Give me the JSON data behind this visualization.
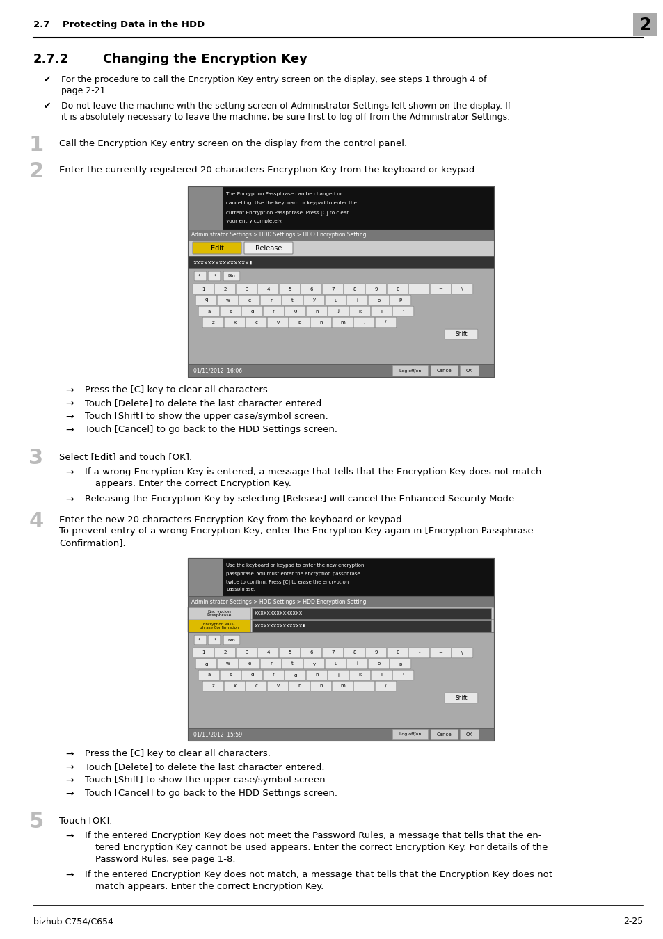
{
  "page_bg": "#ffffff",
  "header_text": "2.7    Protecting Data in the HDD",
  "header_num": "2",
  "section_title_num": "2.7.2",
  "section_title_text": "Changing the Encryption Key",
  "footer_left": "bizhub C754/C654",
  "footer_right": "2-25",
  "checkmark1_line1": "For the procedure to call the Encryption Key entry screen on the display, see steps 1 through 4 of",
  "checkmark1_line2": "page 2-21.",
  "checkmark2_line1": "Do not leave the machine with the setting screen of Administrator Settings left shown on the display. If",
  "checkmark2_line2": "it is absolutely necessary to leave the machine, be sure first to log off from the Administrator Settings.",
  "step1_text": "Call the Encryption Key entry screen on the display from the control panel.",
  "step2_text": "Enter the currently registered 20 characters Encryption Key from the keyboard or keypad.",
  "step3_text": "Select [Edit] and touch [OK].",
  "step4_line1": "Enter the new 20 characters Encryption Key from the keyboard or keypad.",
  "step4_line2": "To prevent entry of a wrong Encryption Key, enter the Encryption Key again in [Encryption Passphrase",
  "step4_line3": "Confirmation].",
  "step5_text": "Touch [OK].",
  "arr2": [
    "Press the [C] key to clear all characters.",
    "Touch [Delete] to delete the last character entered.",
    "Touch [Shift] to show the upper case/symbol screen.",
    "Touch [Cancel] to go back to the HDD Settings screen."
  ],
  "arr3": [
    "If a wrong Encryption Key is entered, a message that tells that the Encryption Key does not match",
    "    appears. Enter the correct Encryption Key.",
    "Releasing the Encryption Key by selecting [Release] will cancel the Enhanced Security Mode."
  ],
  "arr4": [
    "Press the [C] key to clear all characters.",
    "Touch [Delete] to delete the last character entered.",
    "Touch [Shift] to show the upper case/symbol screen.",
    "Touch [Cancel] to go back to the HDD Settings screen."
  ],
  "arr5_1_l1": "If the entered Encryption Key does not meet the Password Rules, a message that tells that the en-",
  "arr5_1_l2": "tered Encryption Key cannot be used appears. Enter the correct Encryption Key. For details of the",
  "arr5_1_l3": "Password Rules, see page 1-8.",
  "arr5_2_l1": "If the entered Encryption Key does not match, a message that tells that the Encryption Key does not",
  "arr5_2_l2": "match appears. Enter the correct Encryption Key.",
  "ui1_black_lines": [
    "The Encryption Passphrase can be changed or",
    "cancelling. Use the keyboard or keypad to enter the",
    "current Encryption Passphrase. Press [C] to clear",
    "your entry completely."
  ],
  "ui2_black_lines": [
    "Use the keyboard or keypad to enter the new encryption",
    "passphrase. You must enter the encryption passphrase",
    "twice to confirm. Press [C] to erase the encryption",
    "passphrase."
  ],
  "ui_nav": "Administrator Settings > HDD Settings > HDD Encryption Setting",
  "ui1_time": "01/11/2012  16:06",
  "ui2_time": "01/11/2012  15:59",
  "kbd_row1": [
    "1",
    "2",
    "3",
    "4",
    "5",
    "6",
    "7",
    "8",
    "9",
    "0",
    "-",
    "=",
    "\\"
  ],
  "kbd_row2": [
    "q",
    "w",
    "e",
    "r",
    "t",
    "y",
    "u",
    "i",
    "o",
    "p"
  ],
  "kbd_row3": [
    "a",
    "s",
    "d",
    "f",
    "g",
    "h",
    "j",
    "k",
    "l",
    "'"
  ],
  "kbd_row4": [
    "z",
    "x",
    "c",
    "v",
    "b",
    "h",
    "m",
    ".",
    "/"
  ]
}
